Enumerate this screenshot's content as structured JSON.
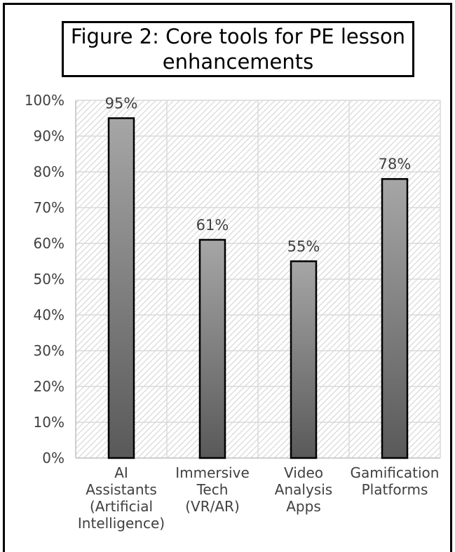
{
  "chart_data": {
    "type": "bar",
    "title": "Figure 2: Core tools for PE lesson enhancements",
    "categories": [
      [
        "AI",
        "Assistants",
        "(Artificial",
        "Intelligence)"
      ],
      [
        "Immersive",
        "Tech",
        "(VR/AR)"
      ],
      [
        "Video",
        "Analysis",
        "Apps"
      ],
      [
        "Gamification",
        "Platforms"
      ]
    ],
    "values": [
      95,
      61,
      55,
      78
    ],
    "data_labels": [
      "95%",
      "61%",
      "55%",
      "78%"
    ],
    "y_ticks": [
      "0%",
      "10%",
      "20%",
      "30%",
      "40%",
      "50%",
      "60%",
      "70%",
      "80%",
      "90%",
      "100%"
    ],
    "ylim": [
      0,
      100
    ],
    "grid": true,
    "colors": {
      "bar_light": "#a6a6a6",
      "bar_dark": "#595959",
      "bar_outline": "#000000",
      "grid": "#d9d9d9",
      "hatch": "#d0d0d0"
    }
  }
}
